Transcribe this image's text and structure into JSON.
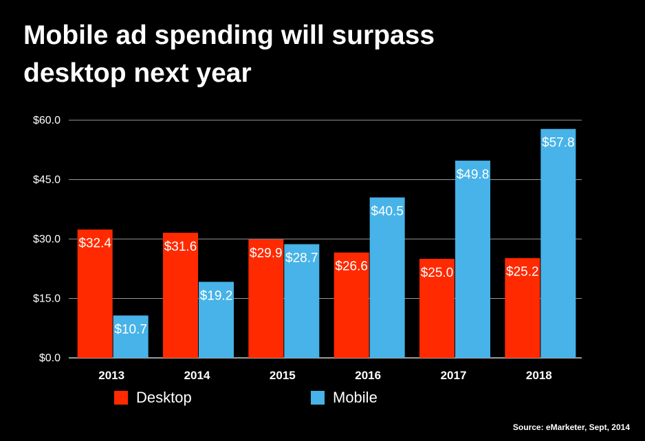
{
  "title_lines": [
    "Mobile ad spending will surpass",
    "desktop next year"
  ],
  "source": "Source: eMarketer, Sept, 2014",
  "colors": {
    "background": "#000000",
    "desktop": "#ff2a00",
    "mobile": "#47b3e8",
    "grid": "#9a9a9a",
    "text": "#ffffff"
  },
  "chart_data": {
    "type": "bar",
    "categories": [
      "2013",
      "2014",
      "2015",
      "2016",
      "2017",
      "2018"
    ],
    "series": [
      {
        "name": "Desktop",
        "color": "#ff2a00",
        "values": [
          32.4,
          31.6,
          29.9,
          26.6,
          25.0,
          25.2
        ],
        "labels": [
          "$32.4",
          "$31.6",
          "$29.9",
          "$26.6",
          "$25.0",
          "$25.2"
        ]
      },
      {
        "name": "Mobile",
        "color": "#47b3e8",
        "values": [
          10.7,
          19.2,
          28.7,
          40.5,
          49.8,
          57.8
        ],
        "labels": [
          "$10.7",
          "$19.2",
          "$28.7",
          "$40.5",
          "$49.8",
          "$57.8"
        ]
      }
    ],
    "ylim": [
      0,
      60
    ],
    "yticks": [
      0,
      15,
      30,
      45,
      60
    ],
    "ytick_labels": [
      "$0.0",
      "$15.0",
      "$30.0",
      "$45.0",
      "$60.0"
    ],
    "grid": true,
    "legend": "bottom"
  }
}
